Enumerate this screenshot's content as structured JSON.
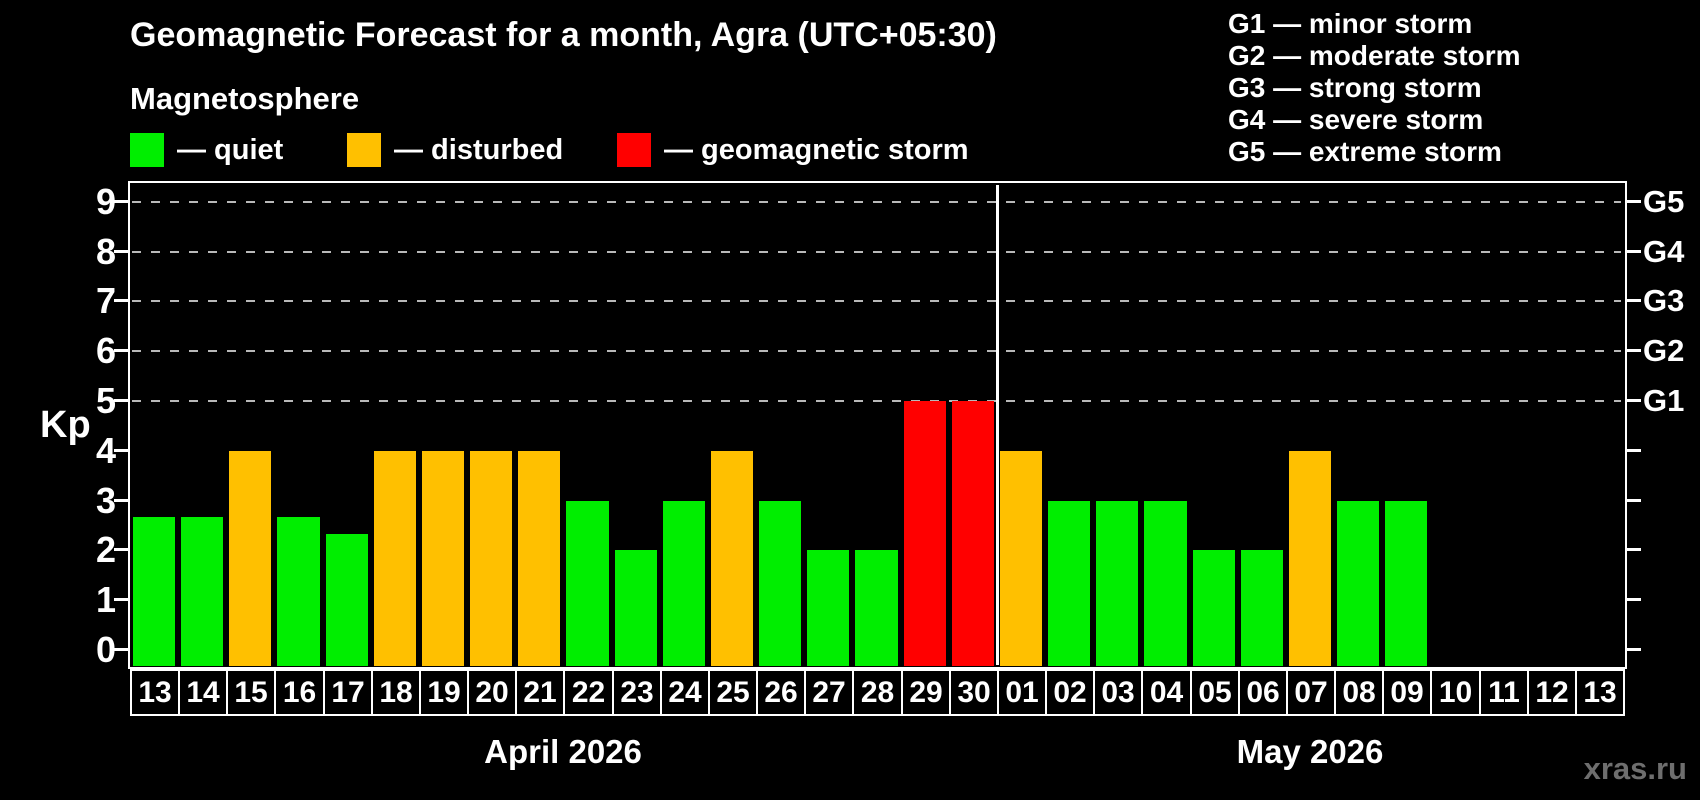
{
  "header": {
    "title": "Geomagnetic Forecast for a month, Agra (UTC+05:30)",
    "subtitle": "Magnetosphere"
  },
  "legend": {
    "items": [
      {
        "key": "quiet",
        "label": "— quiet"
      },
      {
        "key": "disturbed",
        "label": "— disturbed"
      },
      {
        "key": "storm",
        "label": "— geomagnetic storm"
      }
    ]
  },
  "g_scale": {
    "lines": [
      "G1 — minor storm",
      "G2 — moderate storm",
      "G3 — strong storm",
      "G4 — severe storm",
      "G5 — extreme storm"
    ]
  },
  "colors": {
    "quiet": "#00ee00",
    "disturbed": "#ffc000",
    "storm": "#ff0000",
    "background": "#000000",
    "text": "#ffffff",
    "grid": "#b9b9b9",
    "watermark": "#6e6e6e"
  },
  "watermark": "xras.ru",
  "chart_data": {
    "type": "bar",
    "title": "Geomagnetic Forecast for a month, Agra (UTC+05:30)",
    "subtitle": "Magnetosphere",
    "ylabel": "Kp",
    "ylim": [
      0,
      9
    ],
    "yticks": [
      0,
      1,
      2,
      3,
      4,
      5,
      6,
      7,
      8,
      9
    ],
    "gridlines_at": [
      5,
      6,
      7,
      8,
      9
    ],
    "grid": "dashed horizontal at storm levels only",
    "legend_position": "top",
    "right_axis_labels": [
      {
        "kp": 9,
        "label": "G5"
      },
      {
        "kp": 8,
        "label": "G4"
      },
      {
        "kp": 7,
        "label": "G3"
      },
      {
        "kp": 6,
        "label": "G2"
      },
      {
        "kp": 5,
        "label": "G1"
      }
    ],
    "months": [
      {
        "label": "April 2026",
        "days": [
          {
            "day": "13",
            "kp": 2.67,
            "status": "quiet"
          },
          {
            "day": "14",
            "kp": 2.67,
            "status": "quiet"
          },
          {
            "day": "15",
            "kp": 4,
            "status": "disturbed"
          },
          {
            "day": "16",
            "kp": 2.67,
            "status": "quiet"
          },
          {
            "day": "17",
            "kp": 2.33,
            "status": "quiet"
          },
          {
            "day": "18",
            "kp": 4,
            "status": "disturbed"
          },
          {
            "day": "19",
            "kp": 4,
            "status": "disturbed"
          },
          {
            "day": "20",
            "kp": 4,
            "status": "disturbed"
          },
          {
            "day": "21",
            "kp": 4,
            "status": "disturbed"
          },
          {
            "day": "22",
            "kp": 3,
            "status": "quiet"
          },
          {
            "day": "23",
            "kp": 2,
            "status": "quiet"
          },
          {
            "day": "24",
            "kp": 3,
            "status": "quiet"
          },
          {
            "day": "25",
            "kp": 4,
            "status": "disturbed"
          },
          {
            "day": "26",
            "kp": 3,
            "status": "quiet"
          },
          {
            "day": "27",
            "kp": 2,
            "status": "quiet"
          },
          {
            "day": "28",
            "kp": 2,
            "status": "quiet"
          },
          {
            "day": "29",
            "kp": 5,
            "status": "storm"
          },
          {
            "day": "30",
            "kp": 5,
            "status": "storm"
          }
        ]
      },
      {
        "label": "May 2026",
        "days": [
          {
            "day": "01",
            "kp": 4,
            "status": "disturbed"
          },
          {
            "day": "02",
            "kp": 3,
            "status": "quiet"
          },
          {
            "day": "03",
            "kp": 3,
            "status": "quiet"
          },
          {
            "day": "04",
            "kp": 3,
            "status": "quiet"
          },
          {
            "day": "05",
            "kp": 2,
            "status": "quiet"
          },
          {
            "day": "06",
            "kp": 2,
            "status": "quiet"
          },
          {
            "day": "07",
            "kp": 4,
            "status": "disturbed"
          },
          {
            "day": "08",
            "kp": 3,
            "status": "quiet"
          },
          {
            "day": "09",
            "kp": 3,
            "status": "quiet"
          },
          {
            "day": "10",
            "kp": null,
            "status": null
          },
          {
            "day": "11",
            "kp": null,
            "status": null
          },
          {
            "day": "12",
            "kp": null,
            "status": null
          },
          {
            "day": "13",
            "kp": null,
            "status": null
          }
        ]
      }
    ]
  }
}
